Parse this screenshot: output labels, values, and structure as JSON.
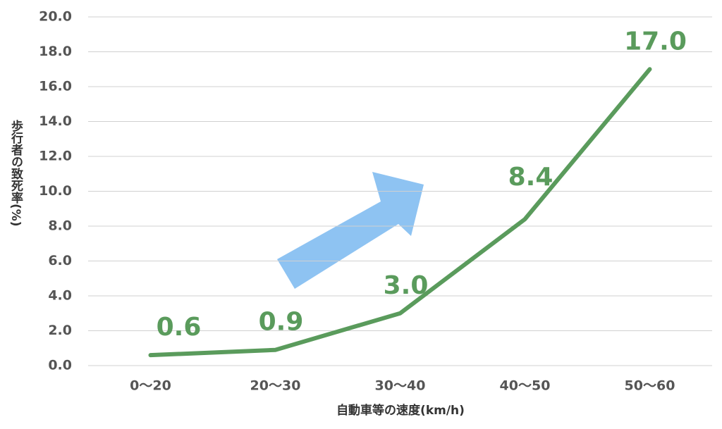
{
  "chart_data": {
    "type": "line",
    "categories": [
      "0〜20",
      "20〜30",
      "30〜40",
      "40〜50",
      "50〜60"
    ],
    "series": [
      {
        "name": "致死率",
        "color": "#5a9b5c",
        "values": [
          0.6,
          0.9,
          3.0,
          8.4,
          17.0
        ],
        "value_labels": [
          "0.6",
          "0.9",
          "3.0",
          "8.4",
          "17.0"
        ]
      }
    ],
    "xlabel": "自動車等の速度(km/h)",
    "ylabel": "歩行者の致死率(%)",
    "ylim": [
      0,
      20
    ],
    "yticks": [
      {
        "value": 0,
        "label": "0.0"
      },
      {
        "value": 2,
        "label": "2.0"
      },
      {
        "value": 4,
        "label": "4.0"
      },
      {
        "value": 6,
        "label": "6.0"
      },
      {
        "value": 8,
        "label": "8.0"
      },
      {
        "value": 10,
        "label": "10.0"
      },
      {
        "value": 12,
        "label": "12.0"
      },
      {
        "value": 14,
        "label": "14.0"
      },
      {
        "value": 16,
        "label": "16.0"
      },
      {
        "value": 18,
        "label": "18.0"
      },
      {
        "value": 20,
        "label": "20.0"
      }
    ],
    "grid": true
  }
}
